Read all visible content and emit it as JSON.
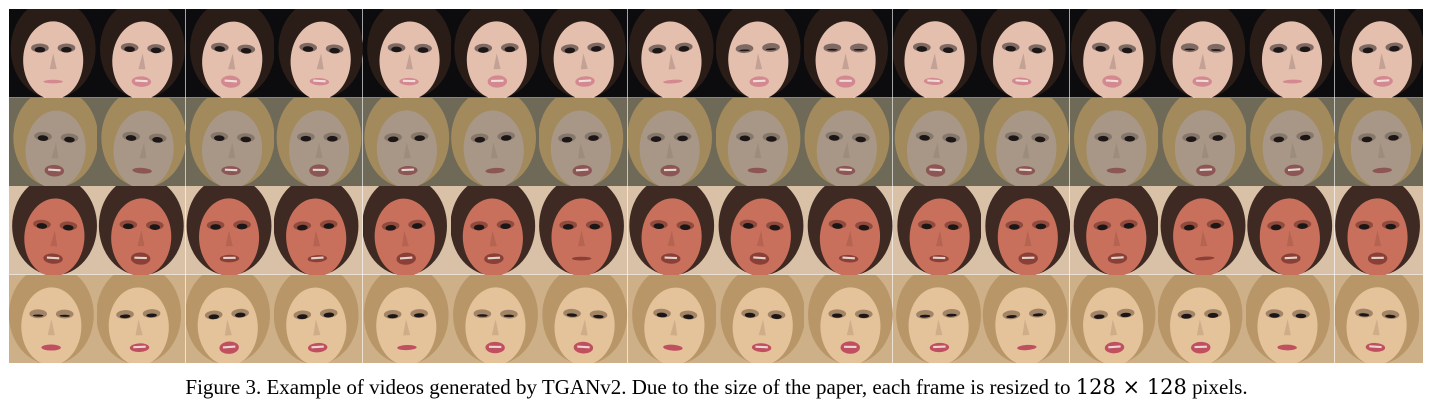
{
  "figure": {
    "rows": [
      {
        "subject": "woman-dark-hair-smoky-eyes",
        "background": "#0c0b0d",
        "skin": "#e4bfae",
        "hair": "#2a1d18",
        "eye_shadow": "#2c2427",
        "lips": "#d3898f",
        "frame_count": 16
      },
      {
        "subject": "woman-blonde-hair",
        "background": "#6f6a58",
        "skin": "#a89786",
        "hair": "#a28a5d",
        "eye_shadow": "#6a5d55",
        "lips": "#8c5655",
        "frame_count": 16
      },
      {
        "subject": "man-red-face-suit",
        "background": "#d9c1a8",
        "skin": "#c9705c",
        "hair": "#3e2a22",
        "eye_shadow": "#5e3026",
        "lips": "#8a4036",
        "frame_count": 16
      },
      {
        "subject": "woman-blonde-hair-pink-lips",
        "background": "#cdb088",
        "skin": "#e4c29a",
        "hair": "#b99667",
        "eye_shadow": "#6b543e",
        "lips": "#c05060",
        "frame_count": 16
      }
    ]
  },
  "caption": {
    "text_before": "Figure 3. Example of videos generated by TGANv2. Due to the size of the paper, each frame is resized to ",
    "math": "128 × 128",
    "text_after": " pixels."
  }
}
